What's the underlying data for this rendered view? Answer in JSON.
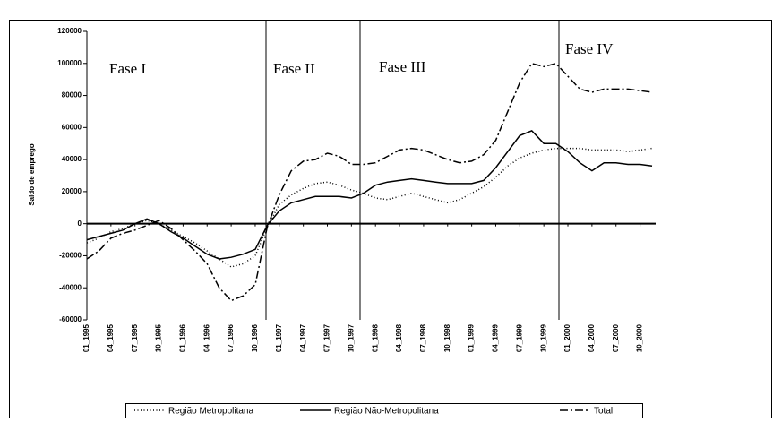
{
  "chart_data": {
    "type": "line",
    "y_label": "Saldo de emprego",
    "annotations": [
      "Fase I",
      "Fase II",
      "Fase III",
      "Fase IV"
    ],
    "categories": [
      "01_1995",
      null,
      "04_1995",
      null,
      "07_1995",
      null,
      "10_1995",
      null,
      "01_1996",
      null,
      "04_1996",
      null,
      "07_1996",
      null,
      "10_1996",
      null,
      "01_1997",
      null,
      "04_1997",
      null,
      "07_1997",
      null,
      "10_1997",
      null,
      "01_1998",
      null,
      "04_1998",
      null,
      "07_1998",
      null,
      "10_1998",
      null,
      "01_1999",
      null,
      "04_1999",
      null,
      "07_1999",
      null,
      "10_1999",
      null,
      "01_2000",
      null,
      "04_2000",
      null,
      "07_2000",
      null,
      "10_2000",
      null
    ],
    "series": [
      {
        "name": "Região Metropolitana",
        "color": "#000000",
        "dash": "dotted",
        "values": [
          -12000,
          -9000,
          -5000,
          -3000,
          0,
          2000,
          0,
          -4000,
          -8000,
          -12000,
          -17000,
          -22000,
          -27000,
          -25000,
          -20000,
          -2000,
          12000,
          18000,
          22000,
          25000,
          26000,
          24000,
          21000,
          19000,
          16000,
          15000,
          17000,
          19000,
          17000,
          15000,
          13000,
          15000,
          19000,
          23000,
          29000,
          36000,
          41000,
          44000,
          46000,
          47000,
          47000,
          47000,
          46000,
          46000,
          46000,
          45000,
          46000,
          47000
        ]
      },
      {
        "name": "Região Não-Metropolitana",
        "color": "#000000",
        "dash": "solid",
        "values": [
          -10000,
          -8000,
          -6000,
          -4000,
          0,
          3000,
          0,
          -5000,
          -9000,
          -14000,
          -19000,
          -22000,
          -21000,
          -19000,
          -16000,
          -1000,
          8000,
          13000,
          15000,
          17000,
          17000,
          17000,
          16000,
          19000,
          24000,
          26000,
          27000,
          28000,
          27000,
          26000,
          25000,
          25000,
          25000,
          27000,
          35000,
          45000,
          55000,
          58000,
          50000,
          50000,
          45000,
          38000,
          33000,
          38000,
          38000,
          37000,
          37000,
          36000
        ]
      },
      {
        "name": "Total",
        "color": "#000000",
        "dash": "dashdot",
        "values": [
          -22000,
          -17000,
          -9000,
          -6000,
          -4000,
          -1000,
          2000,
          -3000,
          -10000,
          -17000,
          -25000,
          -40000,
          -48000,
          -45000,
          -38000,
          -2000,
          18000,
          33000,
          39000,
          40000,
          44000,
          42000,
          37000,
          37000,
          38000,
          42000,
          46000,
          47000,
          46000,
          43000,
          40000,
          38000,
          39000,
          43000,
          52000,
          70000,
          88000,
          100000,
          98000,
          100000,
          92000,
          84000,
          82000,
          84000,
          84000,
          84000,
          83000,
          82000
        ]
      }
    ],
    "ylim": [
      -60000,
      120000
    ],
    "yticks": [
      -60000,
      -40000,
      -20000,
      0,
      20000,
      40000,
      60000,
      80000,
      100000,
      120000
    ]
  }
}
